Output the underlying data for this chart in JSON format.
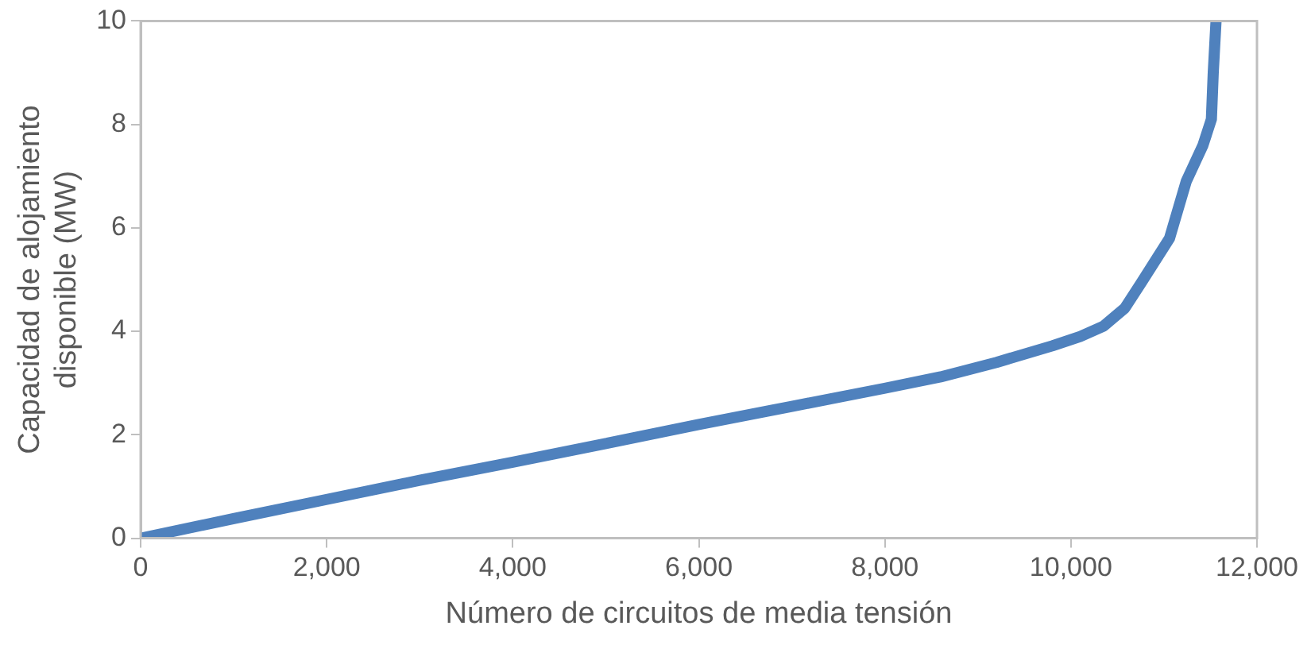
{
  "chart_data": {
    "type": "line",
    "xlabel": "Número de circuitos de media tensión",
    "ylabel": "Capacidad de alojamiento disponible (MW)",
    "x": [
      0,
      1000,
      2000,
      3000,
      4000,
      5000,
      6000,
      7000,
      8000,
      8600,
      9200,
      9800,
      10100,
      10350,
      10580,
      10760,
      11060,
      11240,
      11420,
      11510,
      11530,
      11560
    ],
    "series": [
      {
        "color": "#4f81bd",
        "values": [
          0,
          0.38,
          0.75,
          1.12,
          1.47,
          1.83,
          2.2,
          2.55,
          2.9,
          3.12,
          3.4,
          3.72,
          3.9,
          4.1,
          4.45,
          4.95,
          5.8,
          6.9,
          7.6,
          8.1,
          9.0,
          10
        ]
      }
    ],
    "xlim": [
      0,
      12000
    ],
    "xticks": [
      {
        "value": 0,
        "label": "0"
      },
      {
        "value": 2000,
        "label": "2,000"
      },
      {
        "value": 4000,
        "label": "4,000"
      },
      {
        "value": 6000,
        "label": "6,000"
      },
      {
        "value": 8000,
        "label": "8,000"
      },
      {
        "value": 10000,
        "label": "10,000"
      },
      {
        "value": 12000,
        "label": "12,000"
      }
    ],
    "ylim": [
      0,
      10
    ],
    "yticks": [
      0,
      2,
      4,
      6,
      8,
      10
    ],
    "grid": false,
    "legend": false,
    "marker": "none",
    "line_style": "solid"
  }
}
